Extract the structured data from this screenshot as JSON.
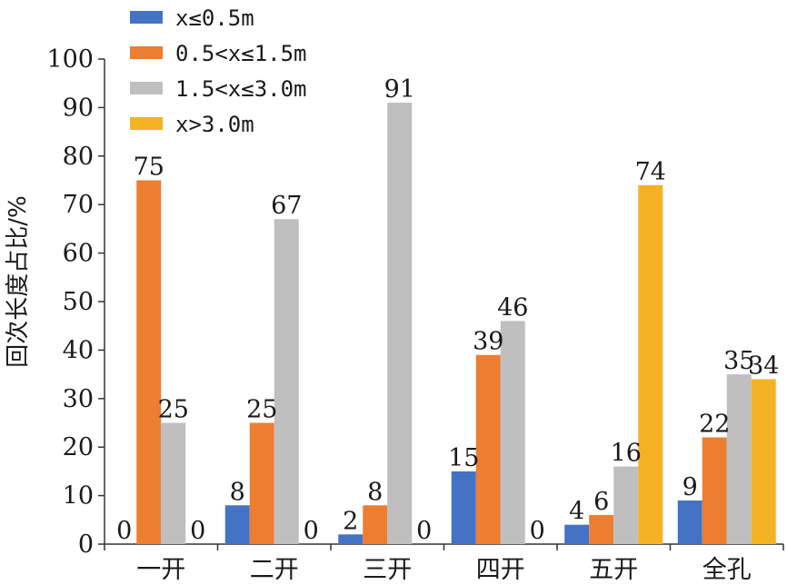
{
  "chart_data": {
    "type": "bar",
    "title": "",
    "xlabel": "",
    "ylabel": "回次长度占比/%",
    "ylim": [
      0,
      100
    ],
    "yticks": [
      0,
      10,
      20,
      30,
      40,
      50,
      60,
      70,
      80,
      90,
      100
    ],
    "grid": false,
    "legend_position": "top-left",
    "categories": [
      "一开",
      "二开",
      "三开",
      "四开",
      "五开",
      "全孔"
    ],
    "series": [
      {
        "name": "x≤0.5m",
        "color": "#4472c4",
        "values": [
          0,
          8,
          2,
          15,
          4,
          9
        ]
      },
      {
        "name": "0.5<x≤1.5m",
        "color": "#ed7d31",
        "values": [
          75,
          25,
          8,
          39,
          6,
          22
        ]
      },
      {
        "name": "1.5<x≤3.0m",
        "color": "#bfbfbf",
        "values": [
          25,
          67,
          91,
          46,
          16,
          35
        ]
      },
      {
        "name": "x>3.0m",
        "color": "#f4b223",
        "values": [
          0,
          0,
          0,
          0,
          74,
          34
        ]
      }
    ]
  }
}
